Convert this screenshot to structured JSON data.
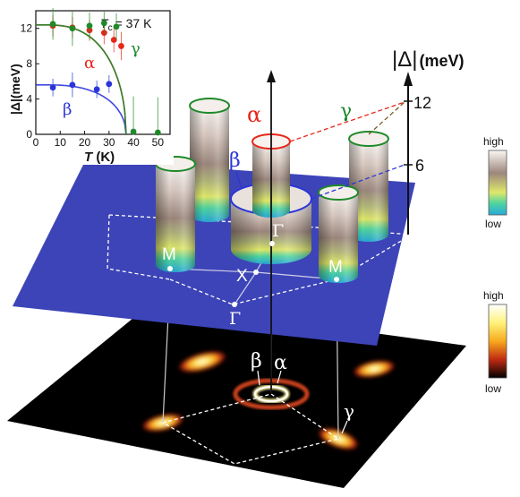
{
  "labels": {
    "alpha": "α",
    "beta": "β",
    "gamma": "γ",
    "gap_axis": "|Δ|",
    "gap_unit": "(meV)",
    "tick_12": "12",
    "tick_6": "6",
    "gamma_point": "Γ",
    "m_point": "M",
    "x_point": "X"
  },
  "colorbar_top": {
    "high": "high",
    "low": "low"
  },
  "colorbar_bottom": {
    "high": "high",
    "low": "low"
  },
  "colors": {
    "alpha": "#e8261a",
    "beta": "#2a35d8",
    "gamma": "#1f8a2a",
    "plane": "#3d44b8",
    "intensity_plane": "#000000"
  },
  "inset": {
    "tc_label": "T",
    "tc_sub": "c",
    "tc_value": "= 37 K",
    "ylabel": "|Δ|(meV)",
    "xlabel_italic": "T",
    "xlabel_unit": " (K)",
    "xticks": [
      "0",
      "10",
      "20",
      "30",
      "40",
      "50"
    ],
    "yticks": [
      "0",
      "4",
      "8",
      "12"
    ]
  },
  "chart_data": {
    "type": "scatter",
    "title": "",
    "xlabel": "T (K)",
    "ylabel": "|Δ|(meV)",
    "xlim": [
      0,
      55
    ],
    "ylim": [
      0,
      14
    ],
    "series": [
      {
        "name": "α",
        "color": "#e8261a",
        "x": [
          7,
          15,
          22,
          28,
          32,
          35
        ],
        "y": [
          12.3,
          12.1,
          11.8,
          11.5,
          10.7,
          10.0
        ],
        "err": [
          1.2,
          1.2,
          1.2,
          1.3,
          1.4,
          1.6
        ],
        "fit_delta0": 12.4
      },
      {
        "name": "β",
        "color": "#2a35d8",
        "x": [
          7,
          15,
          25,
          30
        ],
        "y": [
          5.3,
          5.6,
          5.1,
          5.7
        ],
        "err": [
          1.0,
          1.4,
          1.0,
          1.0
        ],
        "fit_delta0": 5.6
      },
      {
        "name": "γ",
        "color": "#1f8a2a",
        "x": [
          7,
          15,
          22,
          28,
          33,
          40,
          50
        ],
        "y": [
          12.5,
          12.0,
          12.3,
          12.6,
          12.2,
          0.3,
          0.2
        ],
        "err": [
          1.8,
          2.0,
          1.5,
          1.3,
          1.5,
          4.0,
          4.0
        ],
        "fit_delta0": 12.4
      }
    ],
    "tc": 37
  }
}
